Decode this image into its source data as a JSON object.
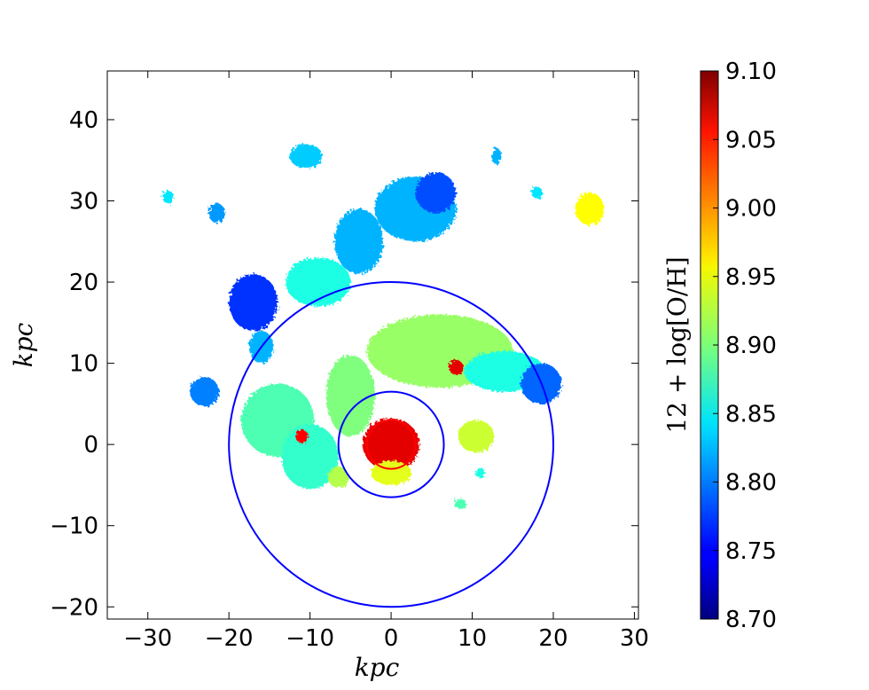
{
  "chart_data": {
    "type": "heatmap",
    "title": "",
    "xlabel": "kpc",
    "ylabel": "kpc",
    "xlim": [
      -35,
      30.5
    ],
    "ylim": [
      -21.5,
      46
    ],
    "x_ticks": [
      -30,
      -20,
      -10,
      0,
      10,
      20,
      30
    ],
    "y_ticks": [
      -20,
      -10,
      0,
      10,
      20,
      30,
      40
    ],
    "x_tick_labels": [
      "−30",
      "−20",
      "−10",
      "0",
      "10",
      "20",
      "30"
    ],
    "y_tick_labels": [
      "−20",
      "−10",
      "0",
      "10",
      "20",
      "30",
      "40"
    ],
    "colorbar": {
      "label": "12 + log[O/H]",
      "range": [
        8.7,
        9.1
      ],
      "colormap": "jet",
      "ticks": [
        8.7,
        8.75,
        8.8,
        8.85,
        8.9,
        8.95,
        9.0,
        9.05,
        9.1
      ],
      "tick_labels": [
        "8.70",
        "8.75",
        "8.80",
        "8.85",
        "8.90",
        "8.95",
        "9.00",
        "9.05",
        "9.10"
      ]
    },
    "circles": [
      {
        "center": [
          0,
          0
        ],
        "radius": 20,
        "color": "#0000ff"
      },
      {
        "center": [
          0,
          0
        ],
        "radius": 6.5,
        "color": "#0000ff"
      },
      {
        "center": [
          0,
          0
        ],
        "radius": 3,
        "color": "#ff0000"
      }
    ],
    "regions": [
      {
        "name": "main-disk-north",
        "center": [
          6,
          11.5
        ],
        "radii": [
          9,
          4.5
        ],
        "value": 8.91
      },
      {
        "name": "north-arm-east",
        "center": [
          14,
          9
        ],
        "radii": [
          5,
          2.5
        ],
        "value": 8.86
      },
      {
        "name": "east-tip",
        "center": [
          18.5,
          7.5
        ],
        "radii": [
          2.5,
          2.5
        ],
        "value": 8.79
      },
      {
        "name": "west-arm-upper",
        "center": [
          -9,
          20
        ],
        "radii": [
          4,
          3
        ],
        "value": 8.86
      },
      {
        "name": "northwest-clump",
        "center": [
          -17,
          17.5
        ],
        "radii": [
          3,
          3.5
        ],
        "value": 8.77
      },
      {
        "name": "far-west-clump",
        "center": [
          -16,
          12
        ],
        "radii": [
          1.5,
          2
        ],
        "value": 8.82
      },
      {
        "name": "north-blob",
        "center": [
          3,
          29
        ],
        "radii": [
          5,
          4
        ],
        "value": 8.82
      },
      {
        "name": "northeast-blob",
        "center": [
          5.5,
          31
        ],
        "radii": [
          2.5,
          2.5
        ],
        "value": 8.78
      },
      {
        "name": "tiny-north",
        "center": [
          -10.5,
          35.5
        ],
        "radii": [
          2,
          1.5
        ],
        "value": 8.83
      },
      {
        "name": "mid-north",
        "center": [
          -4,
          25
        ],
        "radii": [
          3,
          4
        ],
        "value": 8.82
      },
      {
        "name": "west-lobe",
        "center": [
          -14,
          3
        ],
        "radii": [
          4.5,
          4.5
        ],
        "value": 8.88
      },
      {
        "name": "west-lobe-lower",
        "center": [
          -10,
          -1.5
        ],
        "radii": [
          3.5,
          4
        ],
        "value": 8.87
      },
      {
        "name": "central-west",
        "center": [
          -5,
          6
        ],
        "radii": [
          3,
          5
        ],
        "value": 8.9
      },
      {
        "name": "nucleus-ring",
        "center": [
          0,
          0
        ],
        "radii": [
          3.5,
          3.2
        ],
        "value": 9.06
      },
      {
        "name": "nucleus-south",
        "center": [
          0,
          -3.5
        ],
        "radii": [
          2.5,
          1.5
        ],
        "value": 8.94
      },
      {
        "name": "east-knot",
        "center": [
          10.5,
          1
        ],
        "radii": [
          2.2,
          2
        ],
        "value": 8.93
      },
      {
        "name": "south-knot",
        "center": [
          -6.5,
          -4
        ],
        "radii": [
          1.3,
          1.3
        ],
        "value": 8.92
      },
      {
        "name": "satellite-far-west",
        "center": [
          -23,
          6.5
        ],
        "radii": [
          1.8,
          1.8
        ],
        "value": 8.8
      },
      {
        "name": "satellite-west",
        "center": [
          -21.5,
          28.5
        ],
        "radii": [
          1,
          1.2
        ],
        "value": 8.81
      },
      {
        "name": "satellite-ne",
        "center": [
          24.5,
          29
        ],
        "radii": [
          1.8,
          2
        ],
        "value": 8.95
      },
      {
        "name": "satellite-south",
        "center": [
          8.5,
          -7.3
        ],
        "radii": [
          0.8,
          0.6
        ],
        "value": 8.88
      },
      {
        "name": "satellite-sw",
        "center": [
          -27.5,
          30.5
        ],
        "radii": [
          0.7,
          0.8
        ],
        "value": 8.84
      },
      {
        "name": "satellite-top",
        "center": [
          13,
          35.5
        ],
        "radii": [
          0.6,
          1
        ],
        "value": 8.82
      },
      {
        "name": "satellite-right",
        "center": [
          18,
          31
        ],
        "radii": [
          0.7,
          0.7
        ],
        "value": 8.84
      },
      {
        "name": "east-small",
        "center": [
          11,
          -3.5
        ],
        "radii": [
          0.6,
          0.6
        ],
        "value": 8.86
      },
      {
        "name": "north-center-red",
        "center": [
          8,
          9.5
        ],
        "radii": [
          0.9,
          0.9
        ],
        "value": 9.06
      },
      {
        "name": "west-red-spot",
        "center": [
          -11,
          1
        ],
        "radii": [
          0.8,
          0.8
        ],
        "value": 9.05
      }
    ]
  }
}
